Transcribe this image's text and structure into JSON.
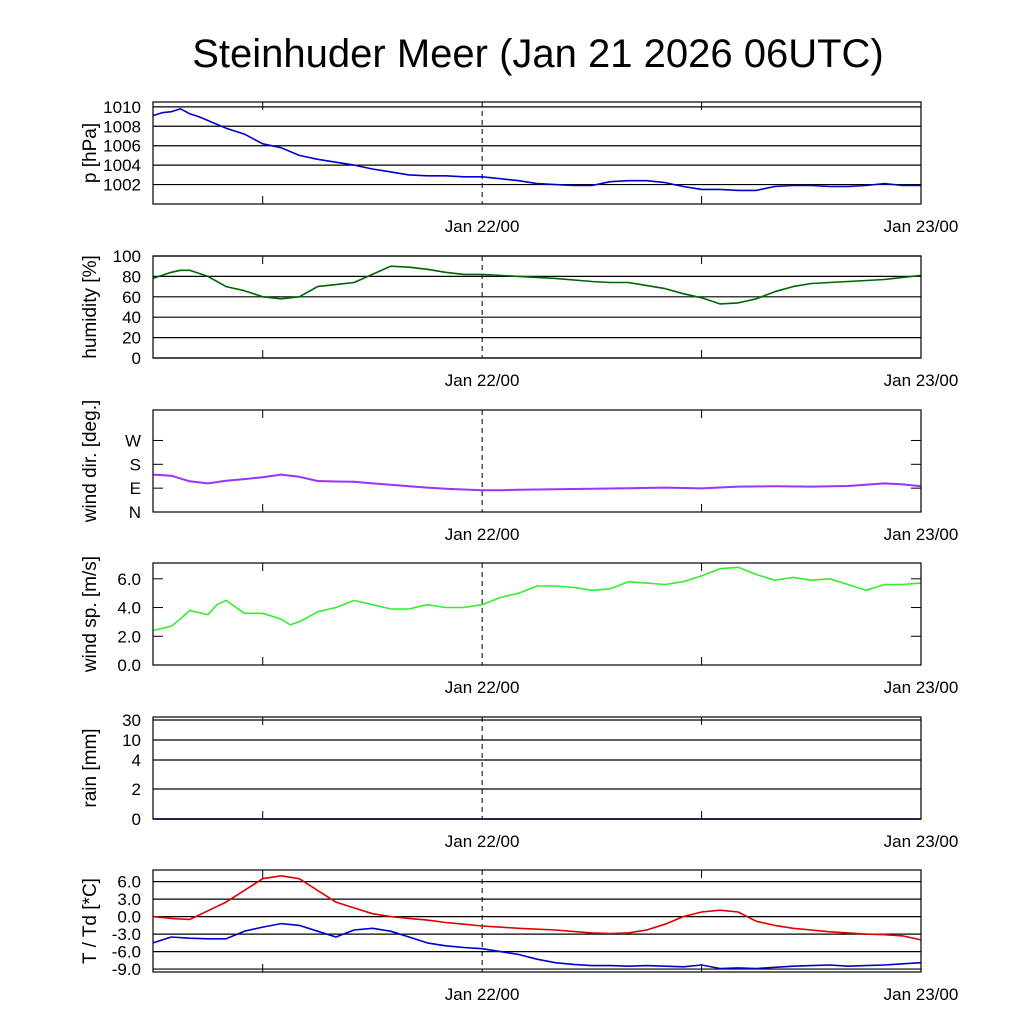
{
  "title": "Steinhuder Meer (Jan 21 2026 06UTC)",
  "colors": {
    "pressure": "#0000cc",
    "humidity": "#006400",
    "wind_dir": "#9933ff",
    "wind_speed": "#33ee33",
    "rain": "#0000cc",
    "temperature": "#dd0000",
    "dewpoint": "#0000cc"
  },
  "chart_data": [
    {
      "type": "line",
      "name": "pressure",
      "ylabel": "p [hPa]",
      "ylim": [
        1000,
        1010.5
      ],
      "yticks": [
        {
          "v": 1002,
          "label": "1002"
        },
        {
          "v": 1004,
          "label": "1004"
        },
        {
          "v": 1006,
          "label": "1006"
        },
        {
          "v": 1008,
          "label": "1008"
        },
        {
          "v": 1010,
          "label": "1010"
        }
      ],
      "xlim": [
        0,
        42
      ],
      "xticks": [
        {
          "h": 18,
          "label": "Jan 22/00"
        },
        {
          "h": 42,
          "label": "Jan 23/00"
        }
      ],
      "minor_xticks": [
        6,
        30
      ],
      "vline": 18,
      "series": [
        {
          "name": "p",
          "color_key": "pressure",
          "x": [
            0,
            0.5,
            1,
            1.5,
            2,
            2.5,
            3,
            4,
            5,
            6,
            7,
            8,
            9,
            10,
            11,
            12,
            13,
            14,
            15,
            16,
            17,
            18,
            19,
            20,
            21,
            22,
            23,
            24,
            25,
            26,
            27,
            28,
            29,
            30,
            31,
            32,
            33,
            34,
            35,
            36,
            37,
            38,
            39,
            40,
            41,
            42
          ],
          "y": [
            1009.1,
            1009.4,
            1009.5,
            1009.8,
            1009.3,
            1009.0,
            1008.6,
            1007.8,
            1007.2,
            1006.2,
            1005.8,
            1005.0,
            1004.6,
            1004.3,
            1004.0,
            1003.6,
            1003.3,
            1003.0,
            1002.9,
            1002.9,
            1002.8,
            1002.8,
            1002.6,
            1002.4,
            1002.1,
            1002.0,
            1001.9,
            1001.9,
            1002.3,
            1002.4,
            1002.4,
            1002.2,
            1001.8,
            1001.5,
            1001.5,
            1001.4,
            1001.4,
            1001.8,
            1001.9,
            1001.9,
            1001.8,
            1001.8,
            1001.9,
            1002.1,
            1001.9,
            1001.9
          ]
        }
      ]
    },
    {
      "type": "line",
      "name": "humidity",
      "ylabel": "humidity [%]",
      "ylim": [
        0,
        100
      ],
      "yticks": [
        {
          "v": 0,
          "label": "0"
        },
        {
          "v": 20,
          "label": "20"
        },
        {
          "v": 40,
          "label": "40"
        },
        {
          "v": 60,
          "label": "60"
        },
        {
          "v": 80,
          "label": "80"
        },
        {
          "v": 100,
          "label": "100"
        }
      ],
      "xlim": [
        0,
        42
      ],
      "xticks": [
        {
          "h": 18,
          "label": "Jan 22/00"
        },
        {
          "h": 42,
          "label": "Jan 23/00"
        }
      ],
      "minor_xticks": [
        6,
        30
      ],
      "vline": 18,
      "series": [
        {
          "name": "rh",
          "color_key": "humidity",
          "x": [
            0,
            1,
            1.5,
            2,
            3,
            4,
            5,
            6,
            7,
            8,
            9,
            10,
            11,
            12,
            13,
            14,
            15,
            16,
            17,
            18,
            20,
            22,
            24,
            25,
            26,
            27,
            28,
            29,
            30,
            31,
            32,
            33,
            34,
            35,
            36,
            37,
            38,
            39,
            40,
            41,
            42
          ],
          "y": [
            78,
            84,
            86,
            86,
            80,
            70,
            66,
            60,
            58,
            60,
            70,
            72,
            74,
            82,
            90,
            89,
            87,
            84,
            82,
            82,
            80,
            78,
            75,
            74,
            74,
            71,
            68,
            63,
            59,
            53,
            54,
            58,
            65,
            70,
            73,
            74,
            75,
            76,
            77,
            79,
            81
          ]
        }
      ]
    },
    {
      "type": "line",
      "name": "wind_direction",
      "ylabel": "wind dir. [deg.]",
      "ylim": [
        0,
        385
      ],
      "yticks": [
        {
          "v": 0,
          "label": "N"
        },
        {
          "v": 90,
          "label": "E"
        },
        {
          "v": 180,
          "label": "S"
        },
        {
          "v": 270,
          "label": "W"
        }
      ],
      "xlim": [
        0,
        42
      ],
      "xticks": [
        {
          "h": 18,
          "label": "Jan 22/00"
        },
        {
          "h": 42,
          "label": "Jan 23/00"
        }
      ],
      "minor_xticks": [
        6,
        30
      ],
      "vline": 18,
      "series": [
        {
          "name": "dir",
          "color_key": "wind_dir",
          "x": [
            0,
            1,
            2,
            3,
            4,
            5,
            6,
            7,
            8,
            9,
            10,
            11,
            12,
            13,
            14,
            15,
            16,
            17,
            18,
            19,
            20,
            22,
            24,
            26,
            28,
            30,
            32,
            34,
            36,
            38,
            40,
            41,
            42
          ],
          "y": [
            141,
            137,
            116,
            108,
            118,
            124,
            131,
            141,
            133,
            117,
            115,
            114,
            108,
            103,
            97,
            92,
            88,
            85,
            82,
            82,
            84,
            86,
            88,
            90,
            92,
            89,
            96,
            97,
            96,
            98,
            108,
            104,
            97
          ]
        }
      ]
    },
    {
      "type": "line",
      "name": "wind_speed",
      "ylabel": "wind sp. [m/s]",
      "ylim": [
        0,
        7.1
      ],
      "yticks": [
        {
          "v": 0,
          "label": "0.0"
        },
        {
          "v": 2,
          "label": "2.0"
        },
        {
          "v": 4,
          "label": "4.0"
        },
        {
          "v": 6,
          "label": "6.0"
        }
      ],
      "xlim": [
        0,
        42
      ],
      "xticks": [
        {
          "h": 18,
          "label": "Jan 22/00"
        },
        {
          "h": 42,
          "label": "Jan 23/00"
        }
      ],
      "minor_xticks": [
        6,
        30
      ],
      "vline": 18,
      "series": [
        {
          "name": "ws",
          "color_key": "wind_speed",
          "x": [
            0,
            1,
            1.5,
            2,
            3,
            3.5,
            4,
            5,
            6,
            7,
            7.5,
            8,
            9,
            10,
            11,
            12,
            13,
            14,
            15,
            16,
            17,
            18,
            19,
            20,
            21,
            22,
            23,
            24,
            25,
            26,
            27,
            28,
            29,
            30,
            31,
            32,
            33,
            34,
            35,
            36,
            37,
            38,
            39,
            40,
            41,
            42
          ],
          "y": [
            2.4,
            2.7,
            3.2,
            3.8,
            3.5,
            4.2,
            4.5,
            3.6,
            3.6,
            3.2,
            2.8,
            3.0,
            3.7,
            4.0,
            4.5,
            4.2,
            3.9,
            3.9,
            4.2,
            4.0,
            4.0,
            4.2,
            4.7,
            5.0,
            5.5,
            5.5,
            5.4,
            5.2,
            5.3,
            5.8,
            5.7,
            5.6,
            5.8,
            6.2,
            6.7,
            6.8,
            6.3,
            5.9,
            6.1,
            5.9,
            6.0,
            5.6,
            5.2,
            5.6,
            5.6,
            5.7
          ]
        }
      ]
    },
    {
      "type": "line",
      "name": "rain",
      "ylabel": "rain [mm]",
      "ylim": [
        0,
        33
      ],
      "yticks": [
        {
          "v": 0,
          "label": "0"
        },
        {
          "v": 2,
          "label": "2"
        },
        {
          "v": 4,
          "label": "4"
        },
        {
          "v": 10,
          "label": "10"
        },
        {
          "v": 30,
          "label": "30"
        }
      ],
      "yscale": "rain",
      "xlim": [
        0,
        42
      ],
      "xticks": [
        {
          "h": 18,
          "label": "Jan 22/00"
        },
        {
          "h": 42,
          "label": "Jan 23/00"
        }
      ],
      "minor_xticks": [
        6,
        30
      ],
      "vline": 18,
      "series": [
        {
          "name": "rain",
          "color_key": "rain",
          "x": [
            0,
            42
          ],
          "y": [
            0,
            0
          ]
        }
      ]
    },
    {
      "type": "line",
      "name": "temperature",
      "ylabel": "T / Td [*C]",
      "ylim": [
        -9.5,
        8
      ],
      "yticks": [
        {
          "v": -9,
          "label": "-9.0"
        },
        {
          "v": -6,
          "label": "-6.0"
        },
        {
          "v": -3,
          "label": "-3.0"
        },
        {
          "v": 0,
          "label": "0.0"
        },
        {
          "v": 3,
          "label": "3.0"
        },
        {
          "v": 6,
          "label": "6.0"
        }
      ],
      "xlim": [
        0,
        42
      ],
      "xticks": [
        {
          "h": 18,
          "label": "Jan 22/00"
        },
        {
          "h": 42,
          "label": "Jan 23/00"
        }
      ],
      "minor_xticks": [
        6,
        30
      ],
      "vline": 18,
      "series": [
        {
          "name": "T",
          "color_key": "temperature",
          "x": [
            0,
            1,
            2,
            3,
            4,
            5,
            6,
            7,
            8,
            9,
            10,
            11,
            12,
            13,
            14,
            15,
            16,
            17,
            18,
            20,
            22,
            24,
            25,
            26,
            27,
            28,
            29,
            30,
            31,
            32,
            33,
            34,
            35,
            36,
            37,
            38,
            39,
            40,
            41,
            42
          ],
          "y": [
            0,
            -0.3,
            -0.5,
            1.0,
            2.5,
            4.5,
            6.5,
            7.0,
            6.5,
            4.5,
            2.5,
            1.5,
            0.5,
            0,
            -0.3,
            -0.6,
            -1.0,
            -1.3,
            -1.6,
            -2.0,
            -2.3,
            -2.8,
            -2.9,
            -2.8,
            -2.3,
            -1.3,
            0,
            0.8,
            1.1,
            0.8,
            -0.8,
            -1.5,
            -2.0,
            -2.3,
            -2.6,
            -2.8,
            -3.0,
            -3.1,
            -3.3,
            -4.0
          ]
        },
        {
          "name": "Td",
          "color_key": "dewpoint",
          "x": [
            0,
            1,
            2,
            3,
            4,
            5,
            6,
            7,
            8,
            9,
            10,
            11,
            12,
            13,
            14,
            15,
            16,
            17,
            18,
            19,
            20,
            21,
            22,
            23,
            24,
            25,
            26,
            27,
            28,
            29,
            30,
            31,
            32,
            33,
            34,
            35,
            36,
            37,
            38,
            39,
            40,
            41,
            42
          ],
          "y": [
            -4.5,
            -3.5,
            -3.7,
            -3.8,
            -3.8,
            -2.5,
            -1.8,
            -1.2,
            -1.5,
            -2.5,
            -3.5,
            -2.3,
            -2.0,
            -2.5,
            -3.5,
            -4.5,
            -5.0,
            -5.3,
            -5.5,
            -6.0,
            -6.5,
            -7.3,
            -7.9,
            -8.2,
            -8.4,
            -8.4,
            -8.5,
            -8.4,
            -8.5,
            -8.6,
            -8.3,
            -8.9,
            -8.8,
            -8.9,
            -8.7,
            -8.5,
            -8.4,
            -8.3,
            -8.5,
            -8.4,
            -8.3,
            -8.1,
            -7.9
          ]
        }
      ]
    }
  ]
}
